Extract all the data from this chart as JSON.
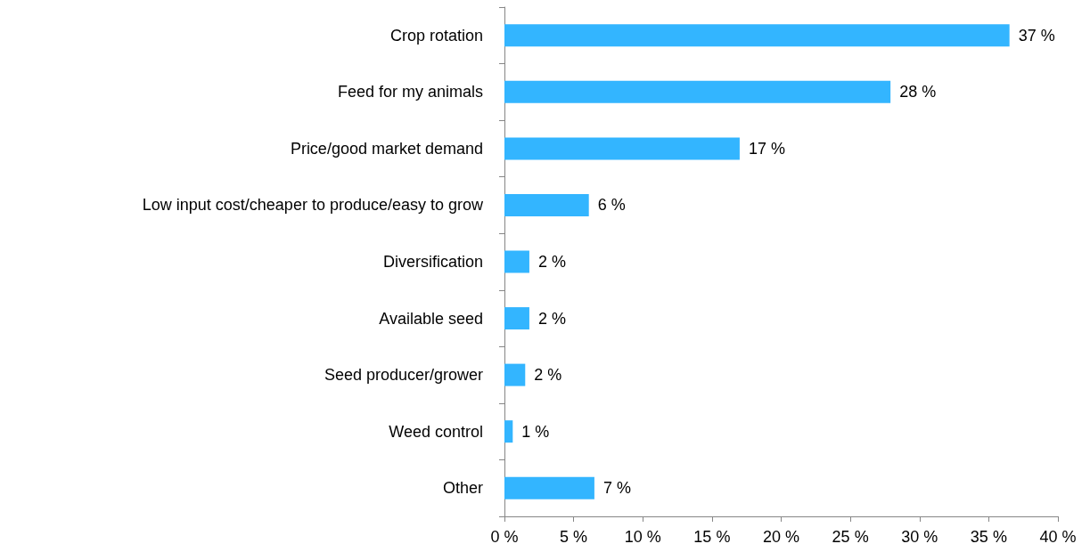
{
  "chart_data": {
    "type": "bar",
    "orientation": "horizontal",
    "categories": [
      "Crop rotation",
      "Feed for my animals",
      "Price/good market demand",
      "Low input cost/cheaper to produce/easy to grow",
      "Diversification",
      "Available seed",
      "Seed producer/grower",
      "Weed control",
      "Other"
    ],
    "values": [
      36.5,
      27.9,
      17.0,
      6.1,
      1.8,
      1.8,
      1.5,
      0.6,
      6.5
    ],
    "value_labels": [
      "37 %",
      "28 %",
      "17 %",
      "6 %",
      "2 %",
      "2 %",
      "2 %",
      "1 %",
      "7 %"
    ],
    "color": "#33b5ff",
    "xlim": [
      0,
      40
    ],
    "xticks": [
      {
        "value": 0,
        "label": "0 %"
      },
      {
        "value": 5,
        "label": "5 %"
      },
      {
        "value": 10,
        "label": "10 %"
      },
      {
        "value": 15,
        "label": "15 %"
      },
      {
        "value": 20,
        "label": "20 %"
      },
      {
        "value": 25,
        "label": "25 %"
      },
      {
        "value": 30,
        "label": "30 %"
      },
      {
        "value": 35,
        "label": "35 %"
      },
      {
        "value": 40,
        "label": "40 %"
      }
    ],
    "grid": false
  }
}
